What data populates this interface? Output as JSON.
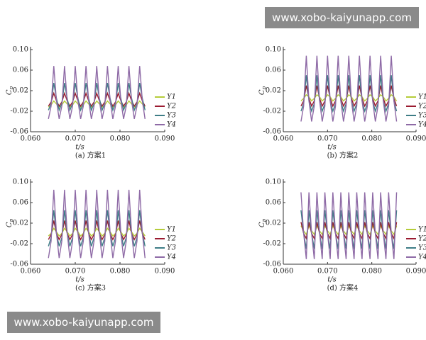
{
  "chart_data": [
    {
      "type": "line",
      "caption": "(a) 方案1",
      "xlabel": "t/s",
      "ylabel": "C",
      "ylabel_subscript": "p",
      "xlim": [
        0.06,
        0.09
      ],
      "ylim": [
        -0.06,
        0.1
      ],
      "xticks": [
        {
          "value": 0.06,
          "label": "0.060"
        },
        {
          "value": 0.07,
          "label": "0.070"
        },
        {
          "value": 0.08,
          "label": "0.080"
        },
        {
          "value": 0.09,
          "label": "0.090"
        }
      ],
      "yticks": [
        -0.06,
        -0.02,
        0.02,
        0.06,
        {
          "value": 0.1,
          "label": "0.10"
        }
      ],
      "legend": "right",
      "x": [
        0.064,
        0.0646,
        0.0652,
        0.0658,
        0.0664,
        0.067,
        0.0676,
        0.0682,
        0.0688,
        0.0694,
        0.07,
        0.0706,
        0.0712,
        0.0718,
        0.0724,
        0.073,
        0.0736,
        0.0742,
        0.0748,
        0.0754,
        0.076,
        0.0766,
        0.0772,
        0.0778,
        0.0784,
        0.079,
        0.0796,
        0.0802,
        0.0808,
        0.0814,
        0.082,
        0.0826,
        0.0832,
        0.0838,
        0.0844,
        0.085,
        0.0856
      ],
      "series": [
        {
          "name": "Y1",
          "color": "#b5cc3a",
          "values": [
            -0.012,
            -0.008,
            0.0,
            -0.006,
            -0.012,
            -0.008,
            0.0,
            -0.006,
            -0.012,
            -0.008,
            0.0,
            -0.006,
            -0.012,
            -0.008,
            0.0,
            -0.006,
            -0.012,
            -0.008,
            0.0,
            -0.006,
            -0.012,
            -0.008,
            0.0,
            -0.006,
            -0.012,
            -0.008,
            0.0,
            -0.006,
            -0.012,
            -0.008,
            0.0,
            -0.006,
            -0.012,
            -0.008,
            0.0,
            -0.006,
            -0.012
          ]
        },
        {
          "name": "Y2",
          "color": "#9b1b30",
          "values": [
            -0.01,
            -0.002,
            0.015,
            0.0,
            -0.01,
            -0.002,
            0.015,
            0.0,
            -0.01,
            -0.002,
            0.015,
            0.0,
            -0.01,
            -0.002,
            0.015,
            0.0,
            -0.01,
            -0.002,
            0.015,
            0.0,
            -0.01,
            -0.002,
            0.015,
            0.0,
            -0.01,
            -0.002,
            0.015,
            0.0,
            -0.01,
            -0.002,
            0.015,
            0.0,
            -0.01,
            -0.002,
            0.015,
            0.0,
            -0.01
          ]
        },
        {
          "name": "Y3",
          "color": "#3e7d86",
          "values": [
            -0.018,
            -0.005,
            0.035,
            0.005,
            -0.018,
            -0.005,
            0.035,
            0.005,
            -0.018,
            -0.005,
            0.035,
            0.005,
            -0.018,
            -0.005,
            0.035,
            0.005,
            -0.018,
            -0.005,
            0.035,
            0.005,
            -0.018,
            -0.005,
            0.035,
            0.005,
            -0.018,
            -0.005,
            0.035,
            0.005,
            -0.018,
            -0.005,
            0.035,
            0.005,
            -0.018,
            -0.005,
            0.035,
            0.005,
            -0.018
          ]
        },
        {
          "name": "Y4",
          "color": "#8e6aa6",
          "values": [
            -0.035,
            -0.01,
            0.068,
            0.0,
            -0.035,
            -0.01,
            0.068,
            0.0,
            -0.035,
            -0.01,
            0.068,
            0.0,
            -0.035,
            -0.01,
            0.068,
            0.0,
            -0.035,
            -0.01,
            0.068,
            0.0,
            -0.035,
            -0.01,
            0.068,
            0.0,
            -0.035,
            -0.01,
            0.068,
            0.0,
            -0.035,
            -0.01,
            0.068,
            0.0,
            -0.035,
            -0.01,
            0.068,
            0.0,
            -0.035
          ]
        }
      ]
    },
    {
      "type": "line",
      "caption": "(b) 方案2",
      "xlabel": "t/s",
      "ylabel": "C",
      "ylabel_subscript": "p",
      "xlim": [
        0.06,
        0.09
      ],
      "ylim": [
        -0.06,
        0.1
      ],
      "xticks": [
        {
          "value": 0.06,
          "label": "0.060"
        },
        {
          "value": 0.07,
          "label": "0.070"
        },
        {
          "value": 0.08,
          "label": "0.080"
        },
        {
          "value": 0.09,
          "label": "0.090"
        }
      ],
      "yticks": [
        -0.06,
        -0.02,
        0.02,
        0.06,
        {
          "value": 0.1,
          "label": "0.10"
        }
      ],
      "legend": "right",
      "x": [
        0.064,
        0.0646,
        0.0652,
        0.0658,
        0.0664,
        0.067,
        0.0676,
        0.0682,
        0.0688,
        0.0694,
        0.07,
        0.0706,
        0.0712,
        0.0718,
        0.0724,
        0.073,
        0.0736,
        0.0742,
        0.0748,
        0.0754,
        0.076,
        0.0766,
        0.0772,
        0.0778,
        0.0784,
        0.079,
        0.0796,
        0.0802,
        0.0808,
        0.0814,
        0.082,
        0.0826,
        0.0832,
        0.0838,
        0.0844,
        0.085,
        0.0856
      ],
      "series": [
        {
          "name": "Y1",
          "color": "#b5cc3a",
          "values": [
            0.0,
            0.005,
            0.012,
            0.008,
            0.0,
            0.005,
            0.012,
            0.008,
            0.0,
            0.005,
            0.012,
            0.008,
            0.0,
            0.005,
            0.012,
            0.008,
            0.0,
            0.005,
            0.012,
            0.008,
            0.0,
            0.005,
            0.012,
            0.008,
            0.0,
            0.005,
            0.012,
            0.008,
            0.0,
            0.005,
            0.012,
            0.008,
            0.0,
            0.005,
            0.012,
            0.008,
            0.0
          ]
        },
        {
          "name": "Y2",
          "color": "#9b1b30",
          "values": [
            -0.01,
            0.0,
            0.03,
            0.005,
            -0.01,
            0.0,
            0.03,
            0.005,
            -0.01,
            0.0,
            0.03,
            0.005,
            -0.01,
            0.0,
            0.03,
            0.005,
            -0.01,
            0.0,
            0.03,
            0.005,
            -0.01,
            0.0,
            0.03,
            0.005,
            -0.01,
            0.0,
            0.03,
            0.005,
            -0.01,
            0.0,
            0.03,
            0.005,
            -0.01,
            0.0,
            0.03,
            0.005,
            -0.01
          ]
        },
        {
          "name": "Y3",
          "color": "#3e7d86",
          "values": [
            -0.02,
            -0.005,
            0.05,
            0.0,
            -0.02,
            -0.005,
            0.05,
            0.0,
            -0.02,
            -0.005,
            0.05,
            0.0,
            -0.02,
            -0.005,
            0.05,
            0.0,
            -0.02,
            -0.005,
            0.05,
            0.0,
            -0.02,
            -0.005,
            0.05,
            0.0,
            -0.02,
            -0.005,
            0.05,
            0.0,
            -0.02,
            -0.005,
            0.05,
            0.0,
            -0.02,
            -0.005,
            0.05,
            0.0,
            -0.02
          ]
        },
        {
          "name": "Y4",
          "color": "#8e6aa6",
          "values": [
            -0.04,
            -0.01,
            0.088,
            0.0,
            -0.04,
            -0.01,
            0.088,
            0.0,
            -0.04,
            -0.01,
            0.088,
            0.0,
            -0.04,
            -0.01,
            0.088,
            0.0,
            -0.04,
            -0.01,
            0.088,
            0.0,
            -0.04,
            -0.01,
            0.088,
            0.0,
            -0.04,
            -0.01,
            0.088,
            0.0,
            -0.04,
            -0.01,
            0.088,
            0.0,
            -0.04,
            -0.01,
            0.088,
            0.0,
            -0.04
          ]
        }
      ]
    },
    {
      "type": "line",
      "caption": "(c) 方案3",
      "xlabel": "t/s",
      "ylabel": "C",
      "ylabel_subscript": "p",
      "xlim": [
        0.06,
        0.09
      ],
      "ylim": [
        -0.06,
        0.1
      ],
      "xticks": [
        {
          "value": 0.06,
          "label": "0.060"
        },
        {
          "value": 0.07,
          "label": "0.070"
        },
        {
          "value": 0.08,
          "label": "0.080"
        },
        {
          "value": 0.09,
          "label": "0.090"
        }
      ],
      "yticks": [
        -0.06,
        -0.02,
        0.02,
        0.06,
        {
          "value": 0.1,
          "label": "0.10"
        }
      ],
      "legend": "right",
      "x": [
        0.064,
        0.0646,
        0.0652,
        0.0658,
        0.0664,
        0.067,
        0.0676,
        0.0682,
        0.0688,
        0.0694,
        0.07,
        0.0706,
        0.0712,
        0.0718,
        0.0724,
        0.073,
        0.0736,
        0.0742,
        0.0748,
        0.0754,
        0.076,
        0.0766,
        0.0772,
        0.0778,
        0.0784,
        0.079,
        0.0796,
        0.0802,
        0.0808,
        0.0814,
        0.082,
        0.0826,
        0.0832,
        0.0838,
        0.0844,
        0.085,
        0.0856
      ],
      "series": [
        {
          "name": "Y1",
          "color": "#b5cc3a",
          "values": [
            -0.005,
            0.0,
            0.01,
            0.003,
            -0.005,
            0.0,
            0.01,
            0.003,
            -0.005,
            0.0,
            0.01,
            0.003,
            -0.005,
            0.0,
            0.01,
            0.003,
            -0.005,
            0.0,
            0.01,
            0.003,
            -0.005,
            0.0,
            0.01,
            0.003,
            -0.005,
            0.0,
            0.01,
            0.003,
            -0.005,
            0.0,
            0.01,
            0.003,
            -0.005,
            0.0,
            0.01,
            0.003,
            -0.005
          ]
        },
        {
          "name": "Y2",
          "color": "#9b1b30",
          "values": [
            -0.012,
            -0.002,
            0.025,
            0.0,
            -0.012,
            -0.002,
            0.025,
            0.0,
            -0.012,
            -0.002,
            0.025,
            0.0,
            -0.012,
            -0.002,
            0.025,
            0.0,
            -0.012,
            -0.002,
            0.025,
            0.0,
            -0.012,
            -0.002,
            0.025,
            0.0,
            -0.012,
            -0.002,
            0.025,
            0.0,
            -0.012,
            -0.002,
            0.025,
            0.0,
            -0.012,
            -0.002,
            0.025,
            0.0,
            -0.012
          ]
        },
        {
          "name": "Y3",
          "color": "#3e7d86",
          "values": [
            -0.025,
            -0.008,
            0.045,
            0.0,
            -0.025,
            -0.008,
            0.045,
            0.0,
            -0.025,
            -0.008,
            0.045,
            0.0,
            -0.025,
            -0.008,
            0.045,
            0.0,
            -0.025,
            -0.008,
            0.045,
            0.0,
            -0.025,
            -0.008,
            0.045,
            0.0,
            -0.025,
            -0.008,
            0.045,
            0.0,
            -0.025,
            -0.008,
            0.045,
            0.0,
            -0.025,
            -0.008,
            0.045,
            0.0,
            -0.025
          ]
        },
        {
          "name": "Y4",
          "color": "#8e6aa6",
          "values": [
            -0.048,
            -0.015,
            0.085,
            0.0,
            -0.048,
            -0.015,
            0.085,
            0.0,
            -0.048,
            -0.015,
            0.085,
            0.0,
            -0.048,
            -0.015,
            0.085,
            0.0,
            -0.048,
            -0.015,
            0.085,
            0.0,
            -0.048,
            -0.015,
            0.085,
            0.0,
            -0.048,
            -0.015,
            0.085,
            0.0,
            -0.048,
            -0.015,
            0.085,
            0.0,
            -0.048,
            -0.015,
            0.085,
            0.0,
            -0.048
          ]
        }
      ]
    },
    {
      "type": "line",
      "caption": "(d) 方案4",
      "xlabel": "t/s",
      "ylabel": "C",
      "ylabel_subscript": "p",
      "xlim": [
        0.06,
        0.09
      ],
      "ylim": [
        -0.06,
        0.1
      ],
      "xticks": [
        {
          "value": 0.06,
          "label": "0.060"
        },
        {
          "value": 0.07,
          "label": "0.070"
        },
        {
          "value": 0.08,
          "label": "0.080"
        },
        {
          "value": 0.09,
          "label": "0.090"
        }
      ],
      "yticks": [
        -0.06,
        -0.02,
        0.02,
        0.06,
        {
          "value": 0.1,
          "label": "0.10"
        }
      ],
      "legend": "right",
      "x": [
        0.064,
        0.0646,
        0.0652,
        0.0658,
        0.0664,
        0.067,
        0.0676,
        0.0682,
        0.0688,
        0.0694,
        0.07,
        0.0706,
        0.0712,
        0.0718,
        0.0724,
        0.073,
        0.0736,
        0.0742,
        0.0748,
        0.0754,
        0.076,
        0.0766,
        0.0772,
        0.0778,
        0.0784,
        0.079,
        0.0796,
        0.0802,
        0.0808,
        0.0814,
        0.082,
        0.0826,
        0.0832,
        0.0838,
        0.0844,
        0.085,
        0.0856
      ],
      "series": [
        {
          "name": "Y1",
          "color": "#b5cc3a",
          "values": [
            0.015,
            0.005,
            -0.002,
            0.015,
            0.005,
            -0.002,
            0.015,
            0.005,
            -0.002,
            0.015,
            0.005,
            -0.002,
            0.015,
            0.005,
            -0.002,
            0.015,
            0.005,
            -0.002,
            0.015,
            0.005,
            -0.002,
            0.015,
            0.005,
            -0.002,
            0.015,
            0.005,
            -0.002,
            0.015,
            0.005,
            -0.002,
            0.015,
            0.005,
            -0.002,
            0.015,
            0.005,
            -0.002,
            0.015
          ]
        },
        {
          "name": "Y2",
          "color": "#9b1b30",
          "values": [
            0.022,
            0.0,
            -0.01,
            0.022,
            0.0,
            -0.01,
            0.022,
            0.0,
            -0.01,
            0.022,
            0.0,
            -0.01,
            0.022,
            0.0,
            -0.01,
            0.022,
            0.0,
            -0.01,
            0.022,
            0.0,
            -0.01,
            0.022,
            0.0,
            -0.01,
            0.022,
            0.0,
            -0.01,
            0.022,
            0.0,
            -0.01,
            0.022,
            0.0,
            -0.01,
            0.022,
            0.0,
            -0.01,
            0.022
          ]
        },
        {
          "name": "Y3",
          "color": "#3e7d86",
          "values": [
            0.045,
            0.0,
            -0.03,
            0.045,
            0.0,
            -0.03,
            0.045,
            0.0,
            -0.03,
            0.045,
            0.0,
            -0.03,
            0.045,
            0.0,
            -0.03,
            0.045,
            0.0,
            -0.03,
            0.045,
            0.0,
            -0.03,
            0.045,
            0.0,
            -0.03,
            0.045,
            0.0,
            -0.03,
            0.045,
            0.0,
            -0.03,
            0.045,
            0.0,
            -0.03,
            0.045,
            0.0,
            -0.03,
            0.045
          ]
        },
        {
          "name": "Y4",
          "color": "#8e6aa6",
          "values": [
            0.08,
            0.0,
            -0.05,
            0.08,
            0.0,
            -0.05,
            0.08,
            0.0,
            -0.05,
            0.08,
            0.0,
            -0.05,
            0.08,
            0.0,
            -0.05,
            0.08,
            0.0,
            -0.05,
            0.08,
            0.0,
            -0.05,
            0.08,
            0.0,
            -0.05,
            0.08,
            0.0,
            -0.05,
            0.08,
            0.0,
            -0.05,
            0.08,
            0.0,
            -0.05,
            0.08,
            0.0,
            -0.05,
            0.08
          ]
        }
      ]
    }
  ],
  "watermarks": [
    "www.xobo-kaiyunapp.com",
    "www.xobo-kaiyunapp.com"
  ]
}
